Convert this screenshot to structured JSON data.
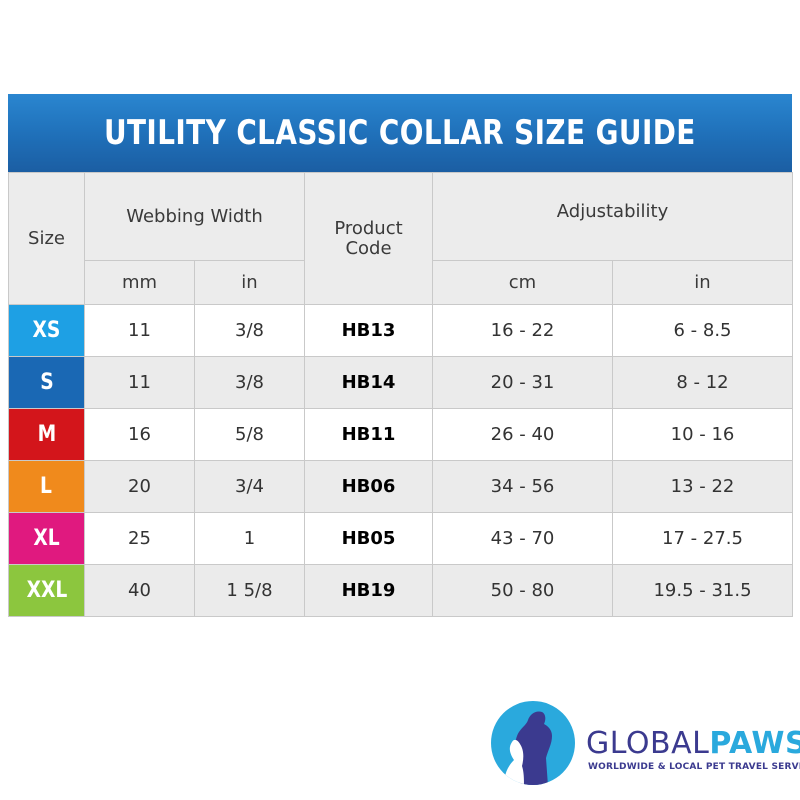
{
  "title": "UTILITY CLASSIC COLLAR SIZE GUIDE",
  "headers": {
    "size": "Size",
    "webbing_width": "Webbing Width",
    "product_code": "Product Code",
    "adjustability": "Adjustability",
    "mm": "mm",
    "width_in": "in",
    "cm": "cm",
    "adj_in": "in"
  },
  "size_colors": {
    "XS": "#1ea0e4",
    "S": "#1a68b4",
    "M": "#d3151b",
    "L": "#f08a1c",
    "XL": "#e0197f",
    "XXL": "#8cc63e"
  },
  "rows": [
    {
      "size": "XS",
      "mm": "11",
      "in": "3/8",
      "code": "HB13",
      "cm": "16 - 22",
      "adj_in": "6 - 8.5"
    },
    {
      "size": "S",
      "mm": "11",
      "in": "3/8",
      "code": "HB14",
      "cm": "20 - 31",
      "adj_in": "8 - 12"
    },
    {
      "size": "M",
      "mm": "16",
      "in": "5/8",
      "code": "HB11",
      "cm": "26 - 40",
      "adj_in": "10 - 16"
    },
    {
      "size": "L",
      "mm": "20",
      "in": "3/4",
      "code": "HB06",
      "cm": "34 - 56",
      "adj_in": "13 - 22"
    },
    {
      "size": "XL",
      "mm": "25",
      "in": "1",
      "code": "HB05",
      "cm": "43 - 70",
      "adj_in": "17 - 27.5"
    },
    {
      "size": "XXL",
      "mm": "40",
      "in": "1 5/8",
      "code": "HB19",
      "cm": "50 - 80",
      "adj_in": "19.5 - 31.5"
    }
  ],
  "logo": {
    "brand_part1": "GLOBAL",
    "brand_part2": "PAWS",
    "tagline": "WORLDWIDE & LOCAL PET TRAVEL SERVICE",
    "colors": {
      "navy": "#3b3a8f",
      "sky": "#2aa9dd"
    }
  }
}
